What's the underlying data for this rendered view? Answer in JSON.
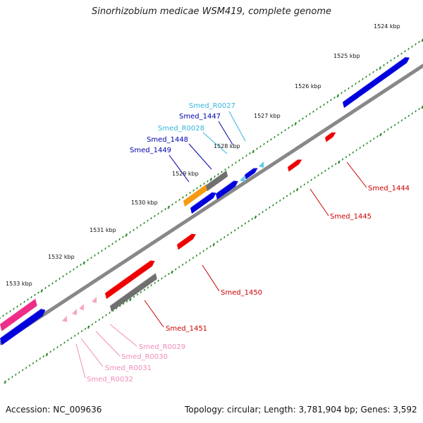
{
  "title": "Sinorhizobium medicae WSM419, complete genome",
  "footer": {
    "accession": "Accession: NC_009636",
    "stats": "Topology: circular; Length: 3,781,904 bp; Genes: 3,592"
  },
  "colors": {
    "cds_forward": "#0000dd",
    "cds_reverse": "#ee0000",
    "rRNA_forward": "#5bc8f0",
    "tRNA_reverse": "#f7a3c7",
    "pseudo": "#707070",
    "orange_feature": "#f59a12",
    "magenta_feature": "#ee2d86",
    "backbone": "#888888",
    "tick_marks": "#2a8a2a"
  },
  "ticks": [
    "1524 kbp",
    "1525 kbp",
    "1526 kbp",
    "1527 kbp",
    "1528 kbp",
    "1529 kbp",
    "1530 kbp",
    "1531 kbp",
    "1532 kbp",
    "1533 kbp"
  ],
  "gene_labels": [
    {
      "text": "Smed_R0027",
      "color": "#33b5dd"
    },
    {
      "text": "Smed_1447",
      "color": "#0000aa"
    },
    {
      "text": "Smed_R0028",
      "color": "#33b5dd"
    },
    {
      "text": "Smed_1448",
      "color": "#0000aa"
    },
    {
      "text": "Smed_1449",
      "color": "#0000aa"
    },
    {
      "text": "Smed_1444",
      "color": "#cc0000"
    },
    {
      "text": "Smed_1445",
      "color": "#cc0000"
    },
    {
      "text": "Smed_1450",
      "color": "#cc0000"
    },
    {
      "text": "Smed_1451",
      "color": "#cc0000"
    },
    {
      "text": "Smed_R0029",
      "color": "#f08cbb"
    },
    {
      "text": "Smed_R0030",
      "color": "#f08cbb"
    },
    {
      "text": "Smed_R0031",
      "color": "#f08cbb"
    },
    {
      "text": "Smed_R0032",
      "color": "#f08cbb"
    }
  ]
}
